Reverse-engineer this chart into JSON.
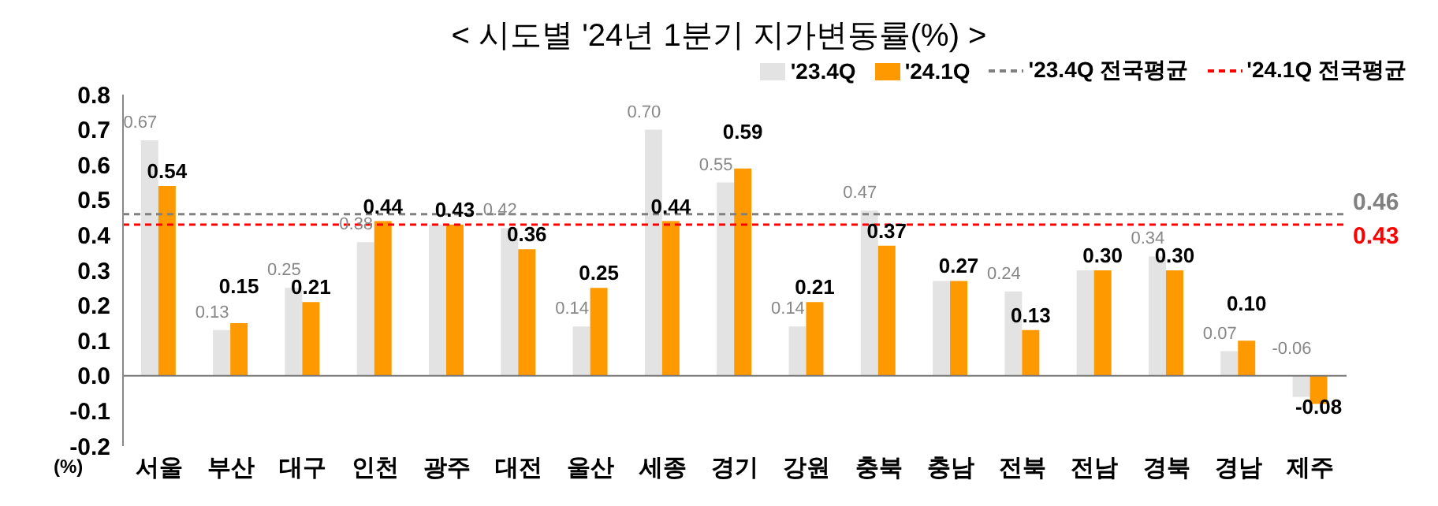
{
  "chart_data": {
    "type": "bar",
    "title": "< 시도별 '24년 1분기 지가변동률(%) >",
    "ylabel": "(%)",
    "categories": [
      "서울",
      "부산",
      "대구",
      "인천",
      "광주",
      "대전",
      "울산",
      "세종",
      "경기",
      "강원",
      "충북",
      "충남",
      "전북",
      "전남",
      "경북",
      "경남",
      "제주"
    ],
    "series": [
      {
        "name": "'23.4Q",
        "color": "#e3e3e3",
        "values": [
          0.67,
          0.13,
          0.25,
          0.38,
          0.43,
          0.42,
          0.14,
          0.7,
          0.55,
          0.14,
          0.47,
          0.27,
          0.24,
          0.3,
          0.34,
          0.07,
          -0.06
        ],
        "value_labels": [
          "0.67",
          "0.13",
          "0.25",
          "0.38",
          null,
          "0.42",
          "0.14",
          "0.70",
          "0.55",
          "0.14",
          "0.47",
          null,
          "0.24",
          null,
          "0.34",
          "0.07",
          "-0.06"
        ]
      },
      {
        "name": "'24.1Q",
        "color": "#ff9900",
        "values": [
          0.54,
          0.15,
          0.21,
          0.44,
          0.43,
          0.36,
          0.25,
          0.44,
          0.59,
          0.21,
          0.37,
          0.27,
          0.13,
          0.3,
          0.3,
          0.1,
          -0.08
        ],
        "value_labels": [
          "0.54",
          "0.15",
          "0.21",
          "0.44",
          "0.43",
          "0.36",
          "0.25",
          "0.44",
          "0.59",
          "0.21",
          "0.37",
          "0.27",
          "0.13",
          "0.30",
          "0.30",
          "0.10",
          "-0.08"
        ]
      }
    ],
    "ref_lines": [
      {
        "axis": "y",
        "value": 0.46,
        "label": "'23.4Q 전국평균",
        "color": "#808080",
        "line_style": "dashed"
      },
      {
        "axis": "y",
        "value": 0.43,
        "label": "'24.1Q 전국평균",
        "color": "#ff0000",
        "line_style": "dashed"
      }
    ],
    "ylim": [
      -0.2,
      0.8
    ],
    "yticks": [
      {
        "value": -0.2,
        "label": "-0.2"
      },
      {
        "value": -0.1,
        "label": "-0.1"
      },
      {
        "value": 0,
        "label": "0.0"
      },
      {
        "value": 0.1,
        "label": "0.1"
      },
      {
        "value": 0.2,
        "label": "0.2"
      },
      {
        "value": 0.3,
        "label": "0.3"
      },
      {
        "value": 0.4,
        "label": "0.4"
      },
      {
        "value": 0.5,
        "label": "0.5"
      },
      {
        "value": 0.6,
        "label": "0.6"
      },
      {
        "value": 0.7,
        "label": "0.7"
      },
      {
        "value": 0.8,
        "label": "0.8"
      }
    ],
    "annotations": [
      "0.46",
      "0.43"
    ],
    "legend": "top right"
  }
}
